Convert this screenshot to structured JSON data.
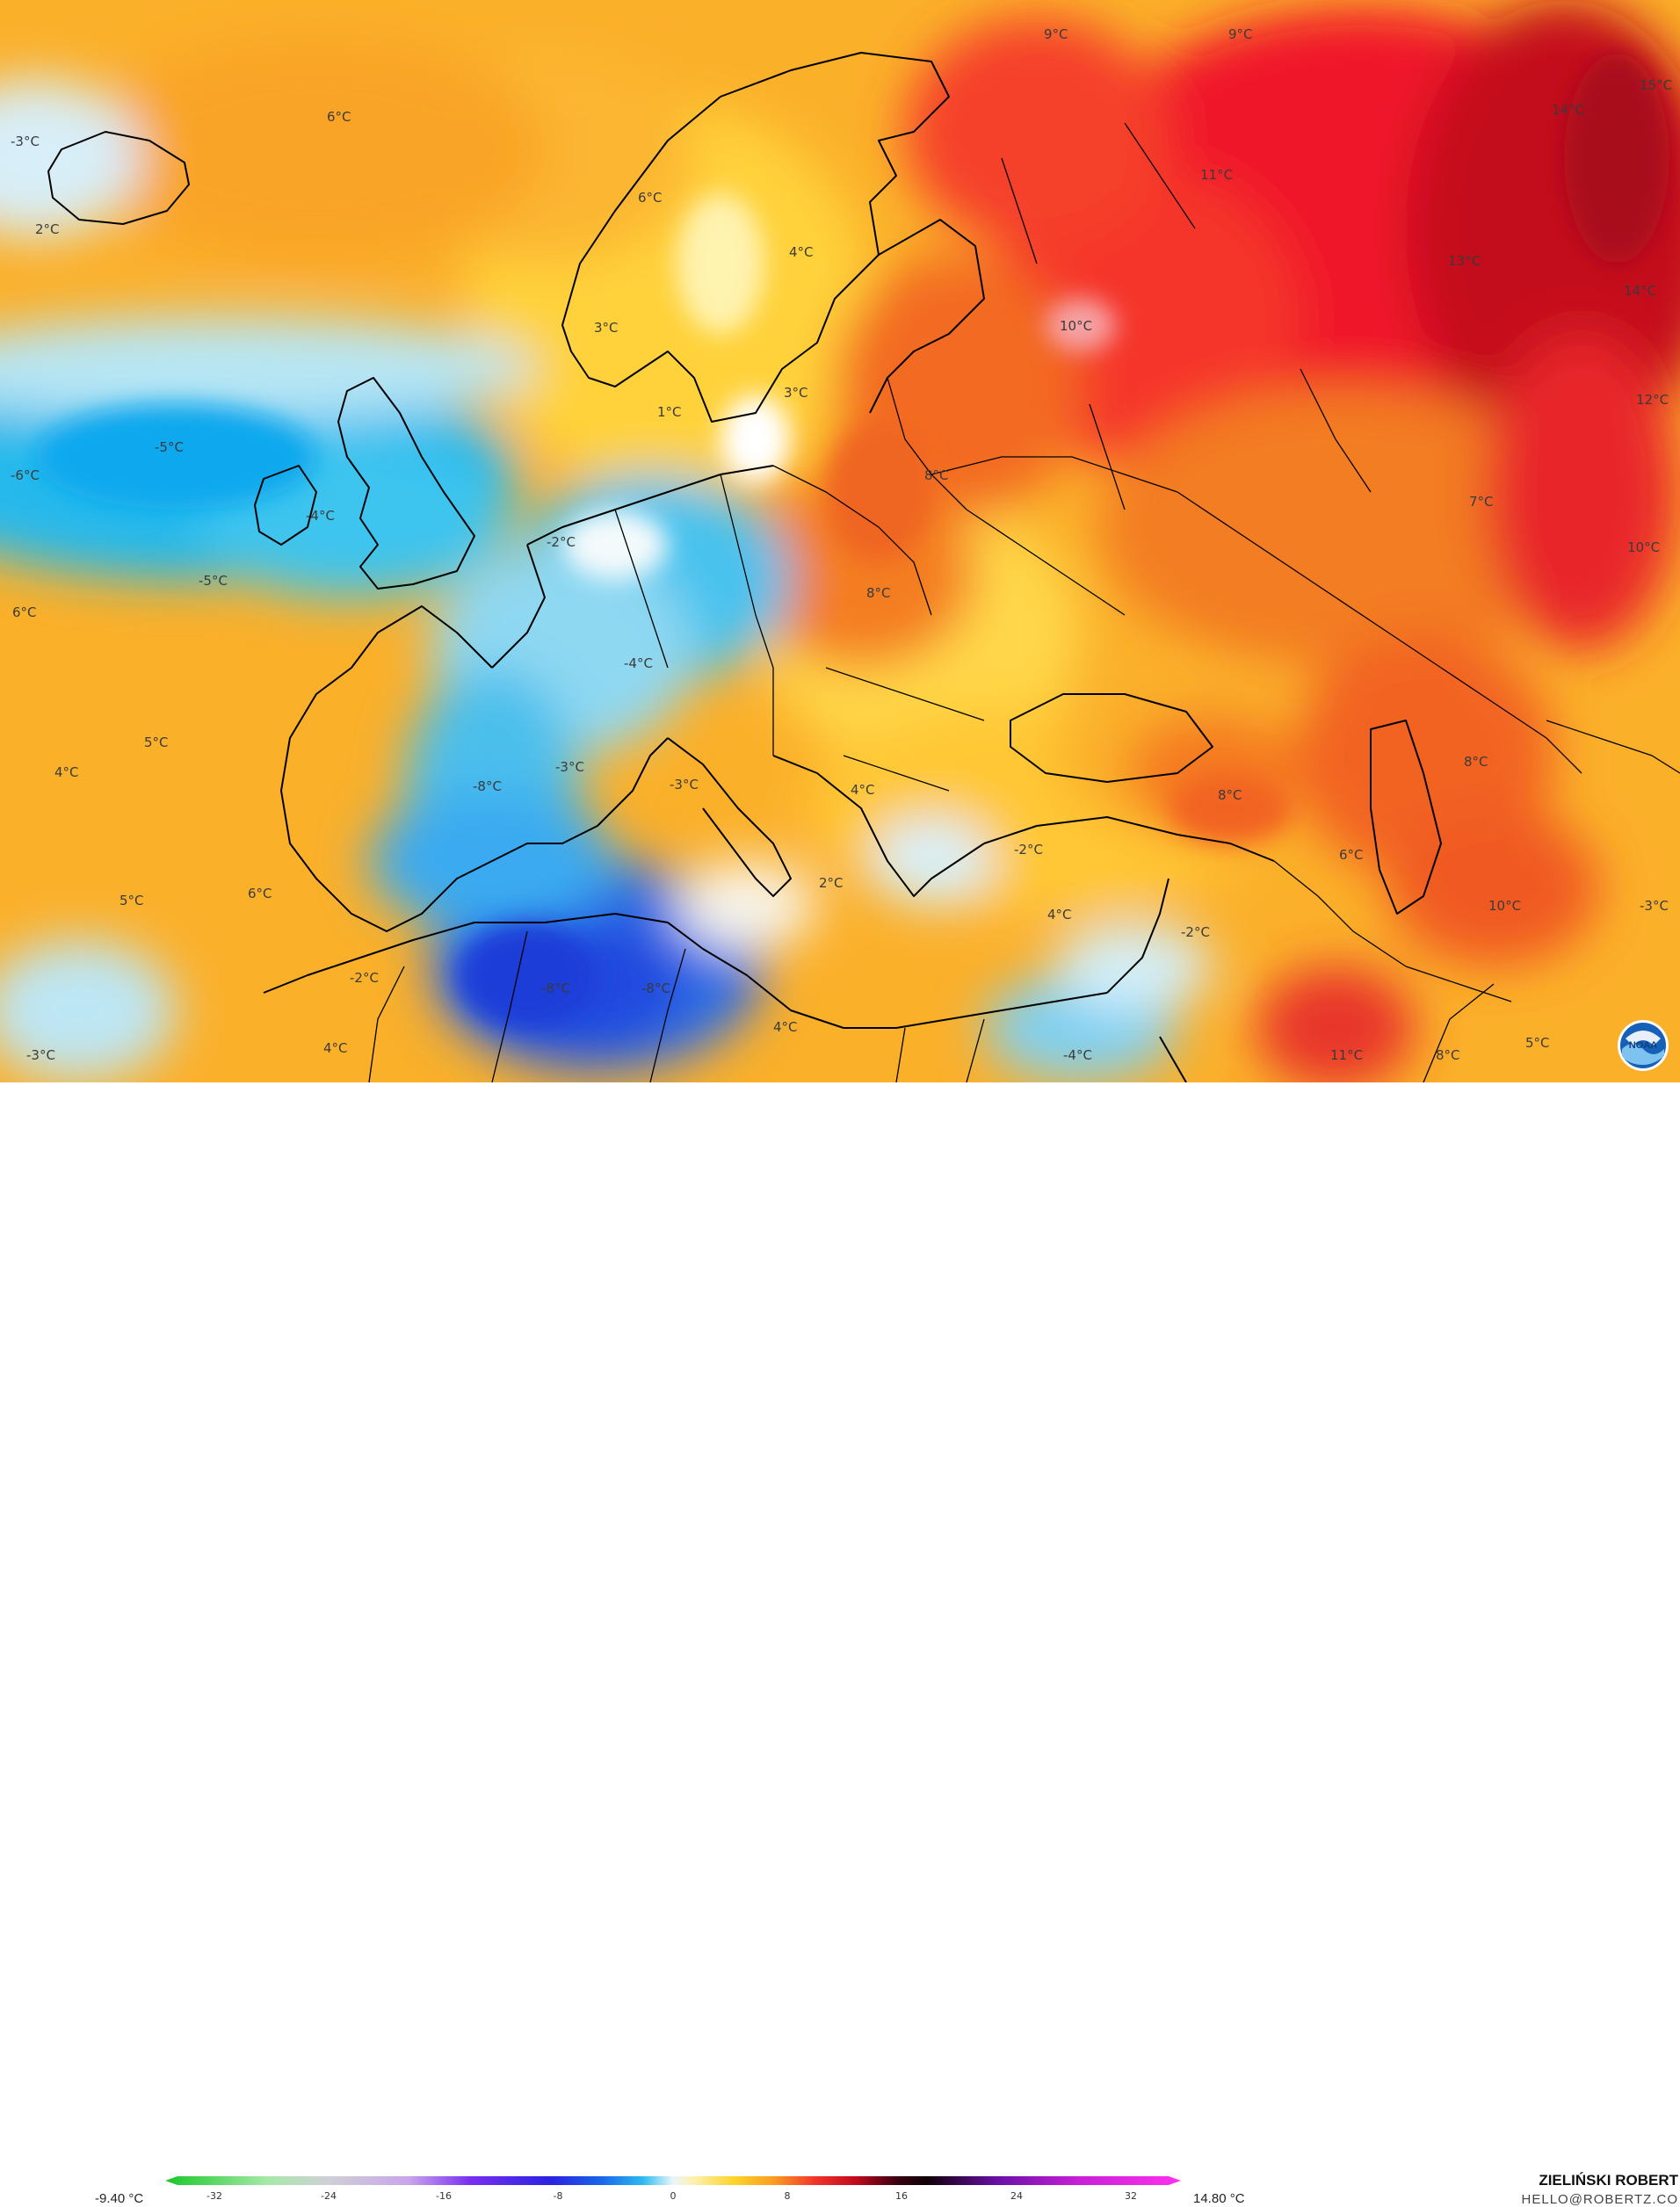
{
  "map": {
    "labels": [
      {
        "id": "n-atlantic-north",
        "text": "6°C"
      },
      {
        "id": "iceland-w",
        "text": "-3°C"
      },
      {
        "id": "iceland-s",
        "text": "2°C"
      },
      {
        "id": "norway-coast",
        "text": "6°C"
      },
      {
        "id": "sweden-n",
        "text": "4°C"
      },
      {
        "id": "norway-s",
        "text": "3°C"
      },
      {
        "id": "denmark",
        "text": "1°C"
      },
      {
        "id": "baltic",
        "text": "3°C"
      },
      {
        "id": "kola-north",
        "text": "9°C"
      },
      {
        "id": "barents",
        "text": "9°C"
      },
      {
        "id": "russia-far-ne",
        "text": "15°C"
      },
      {
        "id": "russia-ne",
        "text": "14°C"
      },
      {
        "id": "arkhangelsk",
        "text": "11°C"
      },
      {
        "id": "russia-east",
        "text": "13°C"
      },
      {
        "id": "ural-north",
        "text": "14°C"
      },
      {
        "id": "ural-mid",
        "text": "12°C"
      },
      {
        "id": "karelia",
        "text": "10°C"
      },
      {
        "id": "atlantic-west",
        "text": "-6°C"
      },
      {
        "id": "atlantic-center",
        "text": "-5°C"
      },
      {
        "id": "atlantic-south",
        "text": "-5°C"
      },
      {
        "id": "ireland",
        "text": "-4°C"
      },
      {
        "id": "north-sea",
        "text": "-2°C"
      },
      {
        "id": "belarus",
        "text": "8°C"
      },
      {
        "id": "russia-central",
        "text": "7°C"
      },
      {
        "id": "kazakh-north",
        "text": "10°C"
      },
      {
        "id": "poland",
        "text": "8°C"
      },
      {
        "id": "azores-north",
        "text": "6°C"
      },
      {
        "id": "alps",
        "text": "-4°C"
      },
      {
        "id": "atlantic-sw",
        "text": "5°C"
      },
      {
        "id": "atlantic-sw2",
        "text": "4°C"
      },
      {
        "id": "biscay",
        "text": "-8°C"
      },
      {
        "id": "gulf-lion",
        "text": "-3°C"
      },
      {
        "id": "tyrrhenian",
        "text": "-3°C"
      },
      {
        "id": "balkans",
        "text": "4°C"
      },
      {
        "id": "black-sea-south",
        "text": "-2°C"
      },
      {
        "id": "georgia",
        "text": "8°C"
      },
      {
        "id": "caspian-north",
        "text": "8°C"
      },
      {
        "id": "armenia",
        "text": "6°C"
      },
      {
        "id": "morocco-atlantic",
        "text": "5°C"
      },
      {
        "id": "portugal",
        "text": "6°C"
      },
      {
        "id": "ionian",
        "text": "2°C"
      },
      {
        "id": "aegean-south",
        "text": "4°C"
      },
      {
        "id": "iran",
        "text": "10°C"
      },
      {
        "id": "aral",
        "text": "-3°C"
      },
      {
        "id": "cyprus-east",
        "text": "-2°C"
      },
      {
        "id": "morocco-inland",
        "text": "-2°C"
      },
      {
        "id": "algeria",
        "text": "-8°C"
      },
      {
        "id": "tunisia",
        "text": "-8°C"
      },
      {
        "id": "canaries",
        "text": "-3°C"
      },
      {
        "id": "sahara-w",
        "text": "4°C"
      },
      {
        "id": "libya",
        "text": "4°C"
      },
      {
        "id": "egypt",
        "text": "-4°C"
      },
      {
        "id": "iraq",
        "text": "11°C"
      },
      {
        "id": "iran-south",
        "text": "8°C"
      },
      {
        "id": "pakistan",
        "text": "5°C"
      }
    ]
  },
  "legend": {
    "min": "-9.40 °C",
    "max": "14.80 °C",
    "ticks": [
      "-32",
      "-24",
      "-16",
      "-8",
      "0",
      "8",
      "16",
      "24",
      "32"
    ]
  },
  "credit": {
    "name": "ZIELIŃSKI ROBERT",
    "email": "HELLO@ROBERTZ.CO"
  },
  "logo": {
    "text": "NOAA"
  }
}
